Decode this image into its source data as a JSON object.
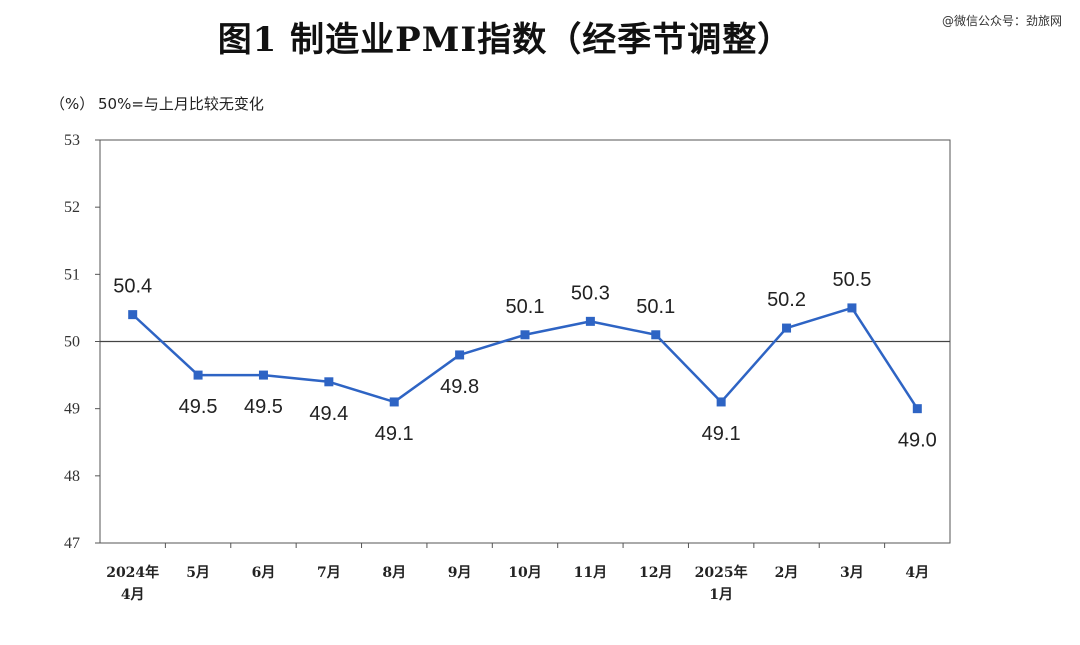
{
  "header": {
    "title": "图1  制造业PMI指数（经季节调整）",
    "watermark": "@微信公众号：劲旅网"
  },
  "chart_data": {
    "type": "line",
    "unit_label": "（%）",
    "reference_note": "50%=与上月比较无变化",
    "categories": [
      [
        "2024年",
        "4月"
      ],
      [
        "5月"
      ],
      [
        "6月"
      ],
      [
        "7月"
      ],
      [
        "8月"
      ],
      [
        "9月"
      ],
      [
        "10月"
      ],
      [
        "11月"
      ],
      [
        "12月"
      ],
      [
        "2025年",
        "1月"
      ],
      [
        "2月"
      ],
      [
        "3月"
      ],
      [
        "4月"
      ]
    ],
    "values": [
      50.4,
      49.5,
      49.5,
      49.4,
      49.1,
      49.8,
      50.1,
      50.3,
      50.1,
      49.1,
      50.2,
      50.5,
      49.0
    ],
    "value_labels": [
      "50.4",
      "49.5",
      "49.5",
      "49.4",
      "49.1",
      "49.8",
      "50.1",
      "50.3",
      "50.1",
      "49.1",
      "50.2",
      "50.5",
      "49.0"
    ],
    "label_positions": [
      "above",
      "below",
      "below",
      "below",
      "below",
      "below",
      "above",
      "above",
      "above",
      "below",
      "above",
      "above",
      "below"
    ],
    "ylim": [
      47,
      53
    ],
    "yticks": [
      47,
      48,
      49,
      50,
      51,
      52,
      53
    ],
    "reference_line": 50,
    "series_color": "#2e64c4",
    "grid": false
  }
}
